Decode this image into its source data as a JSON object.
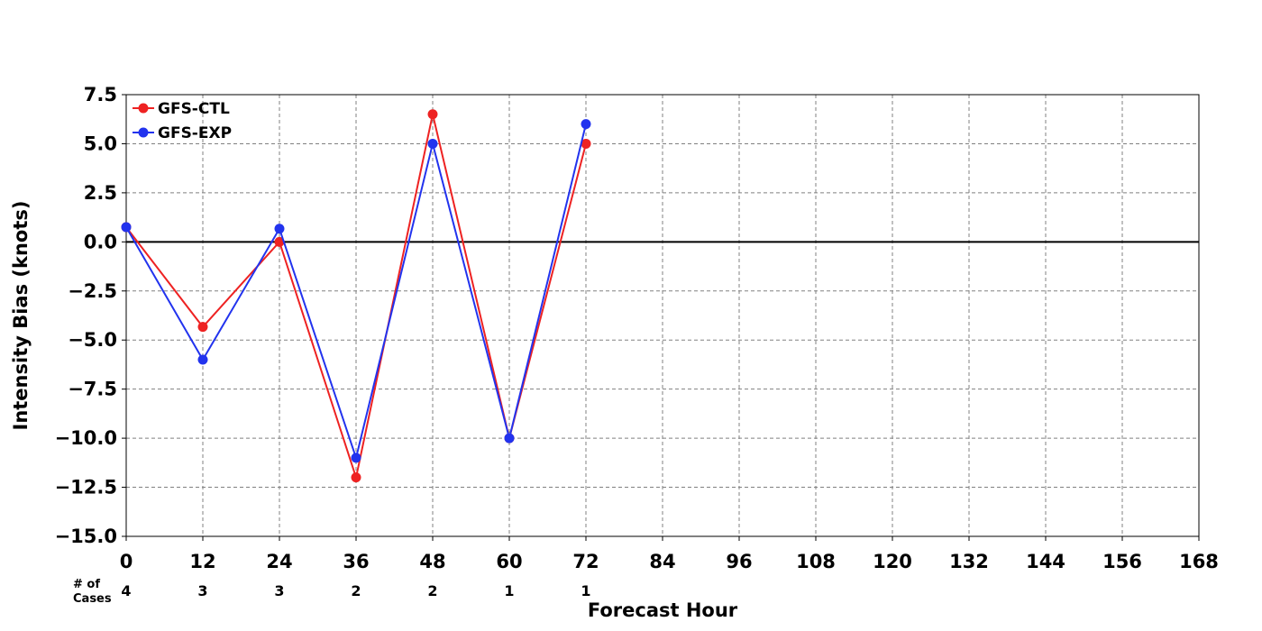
{
  "chart_data": {
    "type": "line",
    "xlabel": "Forecast Hour",
    "ylabel": "Intensity Bias (knots)",
    "x_ticks": [
      "0",
      "12",
      "24",
      "36",
      "48",
      "60",
      "72",
      "84",
      "96",
      "108",
      "120",
      "132",
      "144",
      "156",
      "168"
    ],
    "y_ticks": [
      "7.5",
      "5.0",
      "2.5",
      "0.0",
      "−12.5",
      "−15.0"
    ],
    "y_ticks_full": [
      "7.5",
      "5.0",
      "2.5",
      "0.0",
      "−2.5",
      "−5.0",
      "−7.5",
      "−10.0",
      "−12.5",
      "−15.0"
    ],
    "xlim": [
      0,
      168
    ],
    "ylim": [
      -15,
      7.5
    ],
    "grid": true,
    "legend_position": "top-left",
    "series": [
      {
        "name": "GFS-CTL",
        "color": "#ee2222",
        "x": [
          0,
          12,
          24,
          36,
          48,
          60,
          72
        ],
        "values": [
          0.75,
          -4.33,
          0.0,
          -12.0,
          6.5,
          -10.0,
          5.0
        ]
      },
      {
        "name": "GFS-EXP",
        "color": "#2233ee",
        "x": [
          0,
          12,
          24,
          36,
          48,
          60,
          72
        ],
        "values": [
          0.75,
          -6.0,
          0.67,
          -11.0,
          5.0,
          -10.0,
          6.0
        ]
      }
    ],
    "cases_label_line1": "# of",
    "cases_label_line2": "Cases",
    "cases": [
      "4",
      "3",
      "3",
      "2",
      "2",
      "1",
      "1"
    ],
    "cases_x": [
      0,
      12,
      24,
      36,
      48,
      60,
      72
    ]
  }
}
